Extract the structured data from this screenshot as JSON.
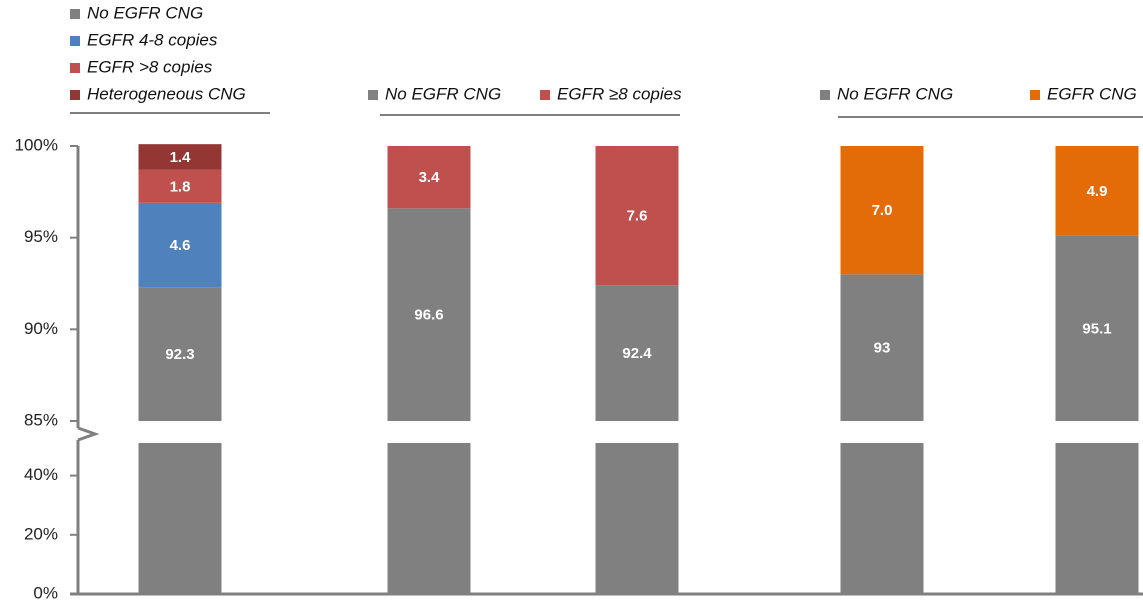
{
  "chart_data": {
    "type": "bar",
    "stacked": true,
    "ylim": [
      0,
      100
    ],
    "ybreak": [
      51,
      85
    ],
    "yticks": [
      {
        "value": 0,
        "label": "0%"
      },
      {
        "value": 20,
        "label": "20%"
      },
      {
        "value": 40,
        "label": "40%"
      },
      {
        "value": 85,
        "label": "85%"
      },
      {
        "value": 90,
        "label": "90%"
      },
      {
        "value": 95,
        "label": "95%"
      },
      {
        "value": 100,
        "label": "100%"
      }
    ],
    "groups": [
      {
        "legend": "vertical",
        "series": [
          {
            "name": "No EGFR CNG",
            "color": "#808080",
            "values": [
              92.3
            ]
          },
          {
            "name": "EGFR 4-8 copies",
            "color": "#4f81bd",
            "values": [
              4.6
            ]
          },
          {
            "name": "EGFR >8 copies",
            "color": "#c0504d",
            "values": [
              1.8
            ]
          },
          {
            "name": "Heterogeneous CNG",
            "color": "#943634",
            "values": [
              1.4
            ]
          }
        ]
      },
      {
        "legend": "horizontal",
        "series": [
          {
            "name": "No EGFR CNG",
            "color": "#808080",
            "values": [
              96.6,
              92.4
            ]
          },
          {
            "name": "EGFR ≥8 copies",
            "color": "#c0504d",
            "values": [
              3.4,
              7.6
            ]
          }
        ]
      },
      {
        "legend": "horizontal",
        "series": [
          {
            "name": "No EGFR CNG",
            "color": "#808080",
            "values": [
              93,
              95.1
            ]
          },
          {
            "name": "EGFR CNG",
            "color": "#e36c09",
            "values": [
              7.0,
              4.9
            ],
            "value_labels": [
              "7.0",
              "4.9"
            ]
          }
        ]
      }
    ]
  }
}
